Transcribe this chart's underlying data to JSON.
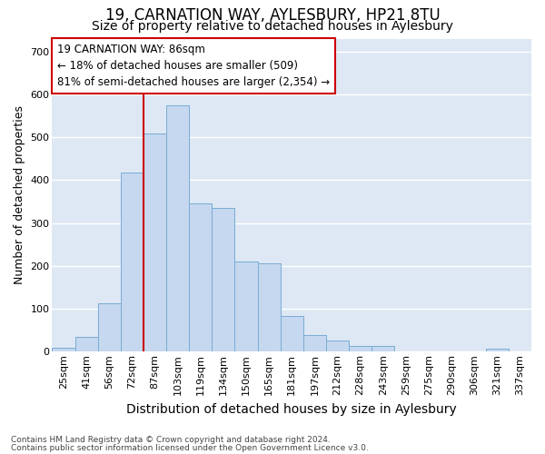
{
  "title1": "19, CARNATION WAY, AYLESBURY, HP21 8TU",
  "title2": "Size of property relative to detached houses in Aylesbury",
  "xlabel": "Distribution of detached houses by size in Aylesbury",
  "ylabel": "Number of detached properties",
  "categories": [
    "25sqm",
    "41sqm",
    "56sqm",
    "72sqm",
    "87sqm",
    "103sqm",
    "119sqm",
    "134sqm",
    "150sqm",
    "165sqm",
    "181sqm",
    "197sqm",
    "212sqm",
    "228sqm",
    "243sqm",
    "259sqm",
    "275sqm",
    "290sqm",
    "306sqm",
    "321sqm",
    "337sqm"
  ],
  "values": [
    10,
    35,
    112,
    418,
    508,
    575,
    345,
    335,
    210,
    205,
    83,
    38,
    27,
    14,
    14,
    0,
    0,
    0,
    0,
    7,
    0
  ],
  "bar_color": "#c5d8ef",
  "bar_edge_color": "#7aabd4",
  "vline_x_idx": 4,
  "vline_color": "#cc0000",
  "annotation_line1": "19 CARNATION WAY: 86sqm",
  "annotation_line2": "← 18% of detached houses are smaller (509)",
  "annotation_line3": "81% of semi-detached houses are larger (2,354) →",
  "annotation_box_color": "#ffffff",
  "annotation_box_edge": "#cc0000",
  "ylim": [
    0,
    730
  ],
  "yticks": [
    0,
    100,
    200,
    300,
    400,
    500,
    600,
    700
  ],
  "plot_bg": "#dde8f4",
  "footer1": "Contains HM Land Registry data © Crown copyright and database right 2024.",
  "footer2": "Contains public sector information licensed under the Open Government Licence v3.0.",
  "title1_fontsize": 12,
  "title2_fontsize": 10,
  "tick_fontsize": 8,
  "ylabel_fontsize": 9,
  "xlabel_fontsize": 10,
  "annotation_fontsize": 8.5,
  "footer_fontsize": 6.5
}
